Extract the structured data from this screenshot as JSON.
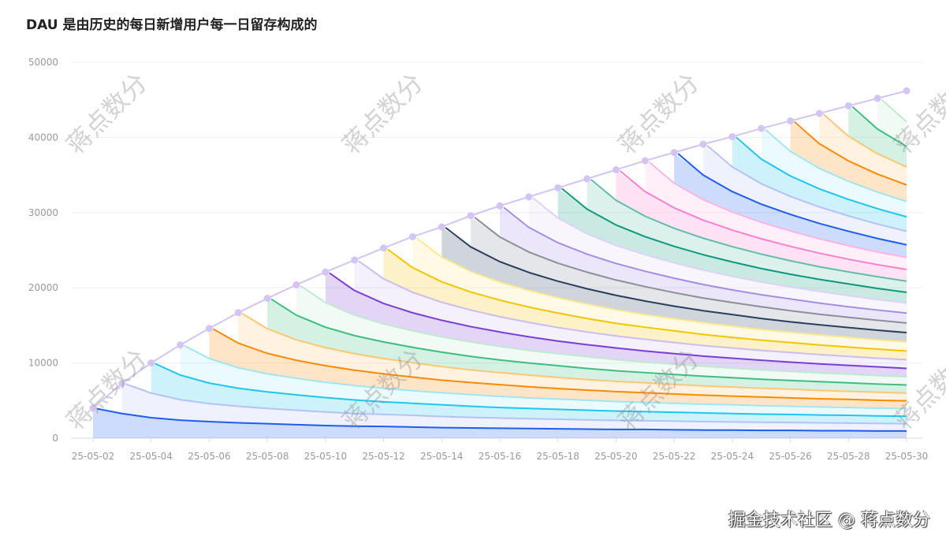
{
  "chart_data": {
    "type": "area",
    "title": "DAU 是由历史的每日新增用户每一日留存构成的",
    "xlabel": "",
    "ylabel": "",
    "stacked": true,
    "ylim": [
      0,
      50000
    ],
    "y_ticks": [
      "0",
      "10000",
      "20000",
      "30000",
      "40000",
      "50000"
    ],
    "x": [
      "25-05-02",
      "25-05-03",
      "25-05-04",
      "25-05-05",
      "25-05-06",
      "25-05-07",
      "25-05-08",
      "25-05-09",
      "25-05-10",
      "25-05-11",
      "25-05-12",
      "25-05-13",
      "25-05-14",
      "25-05-15",
      "25-05-16",
      "25-05-17",
      "25-05-18",
      "25-05-19",
      "25-05-20",
      "25-05-21",
      "25-05-22",
      "25-05-23",
      "25-05-24",
      "25-05-25",
      "25-05-26",
      "25-05-27",
      "25-05-28",
      "25-05-29",
      "25-05-30"
    ],
    "x_tick_labels": [
      "25-05-02",
      "25-05-04",
      "25-05-06",
      "25-05-08",
      "25-05-10",
      "25-05-12",
      "25-05-14",
      "25-05-16",
      "25-05-18",
      "25-05-20",
      "25-05-22",
      "25-05-24",
      "25-05-26",
      "25-05-28",
      "25-05-30"
    ],
    "grid": true,
    "legend": "none",
    "dau_total": [
      4000,
      7300,
      10000,
      12400,
      14600,
      16700,
      18600,
      20400,
      22100,
      23700,
      25300,
      26800,
      28100,
      29600,
      30900,
      32100,
      33300,
      34500,
      35700,
      36900,
      38000,
      39100,
      40100,
      41200,
      42200,
      43200,
      44200,
      45200,
      46200
    ],
    "daily_new_users": 4000,
    "retention_by_day": [
      1,
      0.82,
      0.68,
      0.6,
      0.55,
      0.51,
      0.48,
      0.45,
      0.42,
      0.4,
      0.39,
      0.37,
      0.35,
      0.34,
      0.33,
      0.32,
      0.31,
      0.3,
      0.29,
      0.29,
      0.28,
      0.27,
      0.27,
      0.26,
      0.26,
      0.25,
      0.25,
      0.24,
      0.24
    ],
    "total_line_color": "#d4c4f4",
    "cohort_colors": [
      "#1d5ef0",
      "#b4c2f6",
      "#1ec6f2",
      "#9ee6f4",
      "#ff8a00",
      "#ffc674",
      "#3cbf7e",
      "#bfead0",
      "#7a3ed8",
      "#cbbcf2",
      "#f6c400",
      "#fbe98e",
      "#2a3f5e",
      "#8a8f99",
      "#a78ce6",
      "#ddd2f8",
      "#0c9a7c",
      "#62bda8",
      "#ff7fcf",
      "#ffb4e2"
    ]
  },
  "watermark": "蒋点数分",
  "footer": "掘金技术社区 @ 蒋点数分"
}
